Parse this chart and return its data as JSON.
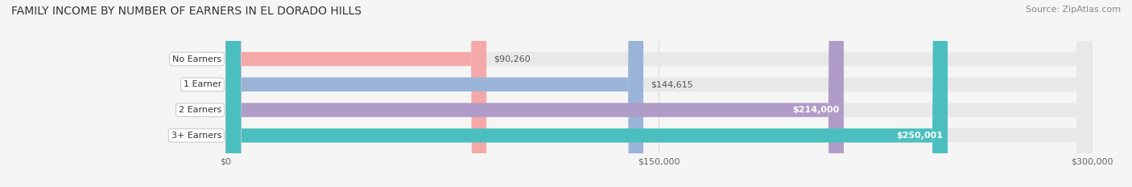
{
  "title": "FAMILY INCOME BY NUMBER OF EARNERS IN EL DORADO HILLS",
  "source": "Source: ZipAtlas.com",
  "categories": [
    "No Earners",
    "1 Earner",
    "2 Earners",
    "3+ Earners"
  ],
  "values": [
    90260,
    144615,
    214000,
    250001
  ],
  "labels": [
    "$90,260",
    "$144,615",
    "$214,000",
    "$250,001"
  ],
  "bar_colors": [
    "#f4a9a8",
    "#9ab4d8",
    "#b09cc8",
    "#4bbfbf"
  ],
  "bar_bg_color": "#e8e8e8",
  "label_inside": [
    false,
    false,
    true,
    true
  ],
  "xlim": [
    0,
    300000
  ],
  "xticks": [
    0,
    150000,
    300000
  ],
  "xticklabels": [
    "$0",
    "$150,000",
    "$300,000"
  ],
  "title_fontsize": 10,
  "source_fontsize": 8,
  "bar_height": 0.55,
  "fig_bg_color": "#f5f5f5"
}
